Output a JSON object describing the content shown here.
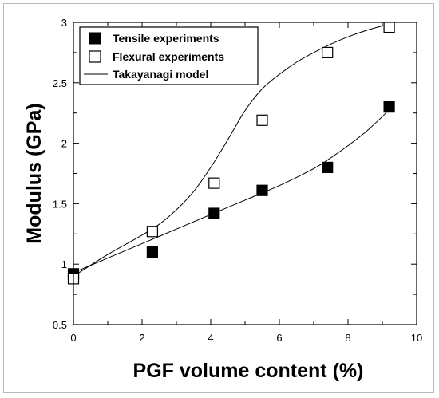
{
  "chart_data": {
    "type": "scatter",
    "xlabel": "PGF volume content (%)",
    "ylabel": "Modulus (GPa)",
    "xlim": [
      0,
      10
    ],
    "ylim": [
      0.5,
      3
    ],
    "x_ticks": [
      0,
      2,
      4,
      6,
      8,
      10
    ],
    "y_ticks": [
      0.5,
      1,
      1.5,
      2,
      2.5,
      3
    ],
    "x_tick_labels": [
      "0",
      "2",
      "4",
      "6",
      "8",
      "10"
    ],
    "y_tick_labels": [
      "0.5",
      "1",
      "1.5",
      "2",
      "2.5",
      "3"
    ],
    "grid": false,
    "legend_position": "top-left",
    "series": [
      {
        "name": "Tensile experiments",
        "marker": "filled-square",
        "color": "#000000",
        "x": [
          0,
          2.3,
          4.1,
          5.5,
          7.4,
          9.2
        ],
        "y": [
          0.92,
          1.1,
          1.42,
          1.61,
          1.8,
          2.3
        ]
      },
      {
        "name": "Flexural experiments",
        "marker": "open-square",
        "color": "#000000",
        "x": [
          0,
          2.3,
          4.1,
          5.5,
          7.4,
          9.2
        ],
        "y": [
          0.88,
          1.27,
          1.67,
          2.19,
          2.75,
          2.96
        ]
      }
    ],
    "model_curves": [
      {
        "name": "Takayanagi model",
        "line": "solid",
        "color": "#000000",
        "x": [
          0,
          1,
          2,
          2.5,
          3,
          3.5,
          4,
          4.5,
          5,
          5.5,
          6,
          6.5,
          7,
          7.5,
          8,
          8.5,
          9,
          9.2
        ],
        "y": [
          0.9,
          1.08,
          1.24,
          1.33,
          1.45,
          1.6,
          1.8,
          2.03,
          2.27,
          2.45,
          2.57,
          2.67,
          2.75,
          2.82,
          2.88,
          2.93,
          2.97,
          2.98
        ]
      },
      {
        "name": "",
        "line": "solid",
        "color": "#000000",
        "x": [
          0,
          1,
          2,
          3,
          4,
          5,
          6,
          7,
          7.5,
          8,
          8.5,
          9,
          9.2
        ],
        "y": [
          0.93,
          1.05,
          1.17,
          1.29,
          1.41,
          1.53,
          1.65,
          1.79,
          1.88,
          1.98,
          2.09,
          2.22,
          2.28
        ]
      }
    ]
  }
}
